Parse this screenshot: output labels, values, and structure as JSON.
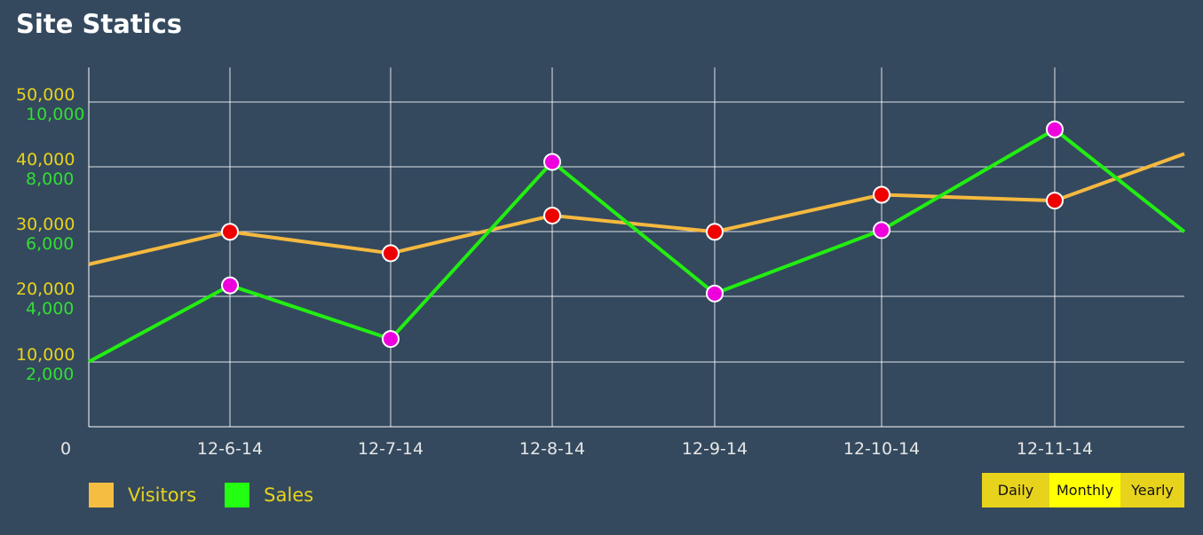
{
  "title": "Site Statics",
  "colors": {
    "background": "#34495e",
    "visitors_line": "#f5b93f",
    "sales_line": "#22ee11",
    "visitors_marker": "#ee0000",
    "sales_marker": "#ee00dd",
    "left_axis_labels": "#e8d31c",
    "right_axis_labels": "#33dd33"
  },
  "legend": [
    {
      "label": "Visitors",
      "color": "#f5b93f"
    },
    {
      "label": "Sales",
      "color": "#22ff11"
    }
  ],
  "range_buttons": {
    "daily": "Daily",
    "monthly": "Monthly",
    "yearly": "Yearly",
    "selected": "Monthly"
  },
  "chart_data": {
    "type": "line",
    "categories": [
      "12-6-14",
      "12-7-14",
      "12-8-14",
      "12-9-14",
      "12-10-14",
      "12-11-14"
    ],
    "origin_label": "0",
    "visitors_ticks": [
      "10,000",
      "20,000",
      "30,000",
      "40,000",
      "50,000"
    ],
    "sales_ticks": [
      "2,000",
      "4,000",
      "6,000",
      "8,000",
      "10,000"
    ],
    "grid": true,
    "legend_position": "bottom-left",
    "series": [
      {
        "name": "Visitors",
        "axis": "visitors",
        "ylim": [
          0,
          55000
        ],
        "start": 25000,
        "values": [
          30000,
          26700,
          32500,
          30000,
          35700,
          34800
        ],
        "end": 42000
      },
      {
        "name": "Sales",
        "axis": "sales",
        "ylim": [
          0,
          11000
        ],
        "start": 2000,
        "values": [
          4350,
          2700,
          8150,
          4100,
          6050,
          9150
        ],
        "end": 6000
      }
    ]
  }
}
